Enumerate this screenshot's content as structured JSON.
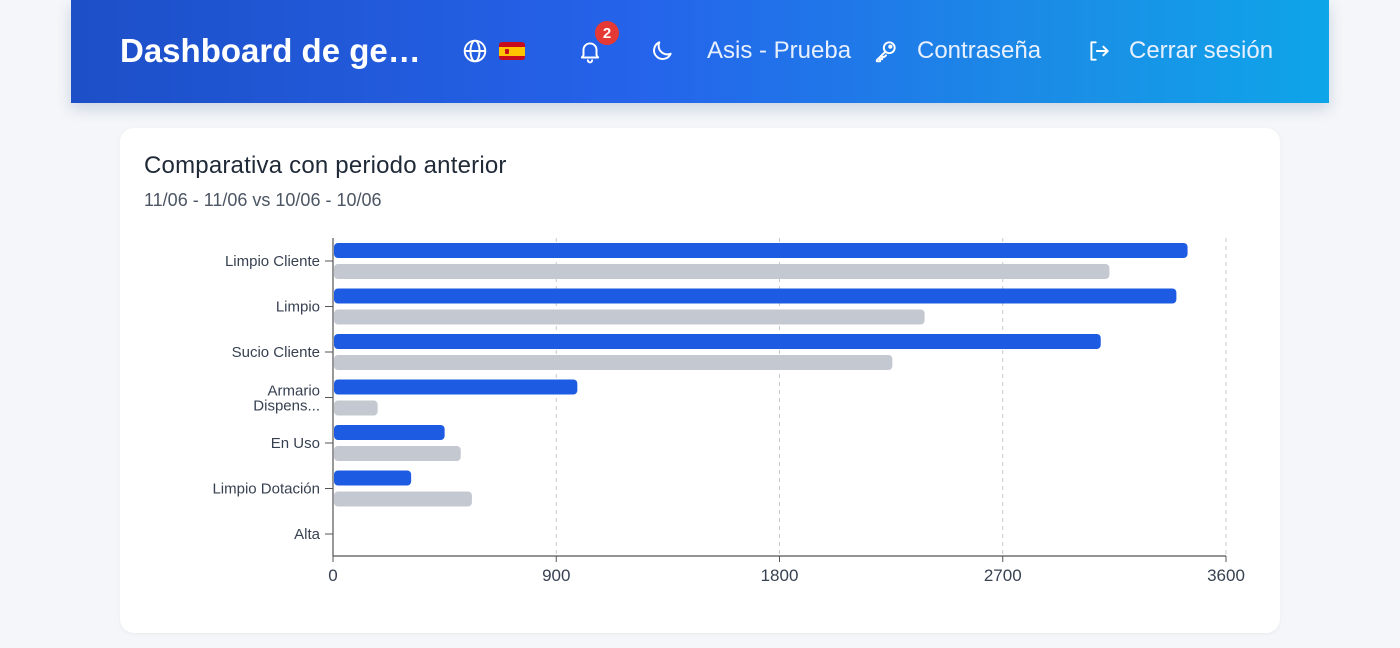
{
  "header": {
    "title": "Dashboard de gestión",
    "notifications_count": "2",
    "user_label": "Asis - Prueba",
    "password_label": "Contraseña",
    "logout_label": "Cerrar sesión",
    "icons": [
      "globe-icon",
      "spain-flag-icon",
      "bell-icon",
      "moon-icon",
      "key-icon",
      "logout-icon"
    ]
  },
  "card": {
    "title": "Comparativa con periodo anterior",
    "subtitle": "11/06 - 11/06 vs 10/06 - 10/06"
  },
  "colors": {
    "current": "#1d5be3",
    "previous": "#c4c8d0",
    "header_start": "#1d4fc7",
    "header_end": "#0ea5e9"
  },
  "chart_data": {
    "type": "bar",
    "orientation": "horizontal",
    "categories": [
      "Limpio Cliente",
      "Limpio",
      "Sucio Cliente",
      "Armario Dispens...",
      "En Uso",
      "Limpio Dotación",
      "Alta"
    ],
    "series": [
      {
        "values": [
          3445,
          3400,
          3095,
          985,
          450,
          315,
          0
        ]
      },
      {
        "values": [
          3130,
          2385,
          2255,
          180,
          515,
          560,
          0
        ]
      }
    ],
    "xlim": [
      0,
      3600
    ],
    "xticks": [
      "0",
      "900",
      "1800",
      "2700",
      "3600"
    ],
    "grid": true,
    "legend": "none"
  }
}
